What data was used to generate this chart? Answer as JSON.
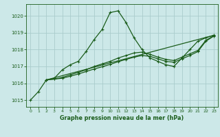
{
  "title": "Graphe pression niveau de la mer (hPa)",
  "bg_color": "#cce8e8",
  "grid_color": "#aacccc",
  "line_color": "#1a5c1a",
  "xlim": [
    -0.5,
    23.5
  ],
  "ylim": [
    1014.6,
    1020.7
  ],
  "yticks": [
    1015,
    1016,
    1017,
    1018,
    1019,
    1020
  ],
  "xticks": [
    0,
    1,
    2,
    3,
    4,
    5,
    6,
    7,
    8,
    9,
    10,
    11,
    12,
    13,
    14,
    15,
    16,
    17,
    18,
    19,
    20,
    21,
    22,
    23
  ],
  "series1": {
    "x": [
      0,
      1,
      2,
      3,
      4,
      5,
      6,
      7,
      8,
      9,
      10,
      11,
      12,
      13,
      14,
      15,
      16,
      17,
      18,
      19,
      20,
      21,
      22,
      23
    ],
    "y": [
      1015.0,
      1015.5,
      1016.2,
      1016.3,
      1016.8,
      1017.1,
      1017.3,
      1017.9,
      1018.6,
      1019.2,
      1020.2,
      1020.3,
      1019.6,
      1018.7,
      1018.0,
      1017.5,
      1017.3,
      1017.1,
      1017.0,
      1017.5,
      1018.0,
      1018.5,
      1018.7,
      1018.85
    ]
  },
  "series2": {
    "x": [
      2,
      3,
      4,
      5,
      6,
      7,
      8,
      9,
      10,
      11,
      12,
      13,
      14,
      15,
      16,
      17,
      18,
      19,
      20,
      21,
      22,
      23
    ],
    "y": [
      1016.2,
      1016.25,
      1016.35,
      1016.5,
      1016.65,
      1016.8,
      1017.0,
      1017.15,
      1017.3,
      1017.5,
      1017.65,
      1017.8,
      1017.85,
      1017.72,
      1017.55,
      1017.42,
      1017.35,
      1017.55,
      1017.75,
      1017.95,
      1018.55,
      1018.82
    ]
  },
  "series3": {
    "x": [
      2,
      3,
      4,
      5,
      6,
      7,
      8,
      9,
      10,
      11,
      12,
      13,
      14,
      15,
      16,
      17,
      18,
      19,
      20,
      21,
      22,
      23
    ],
    "y": [
      1016.2,
      1016.25,
      1016.3,
      1016.42,
      1016.55,
      1016.7,
      1016.85,
      1016.98,
      1017.12,
      1017.28,
      1017.42,
      1017.55,
      1017.65,
      1017.6,
      1017.45,
      1017.3,
      1017.25,
      1017.45,
      1017.65,
      1017.88,
      1018.5,
      1018.8
    ]
  },
  "series4": {
    "x": [
      2,
      23
    ],
    "y": [
      1016.2,
      1018.85
    ]
  }
}
